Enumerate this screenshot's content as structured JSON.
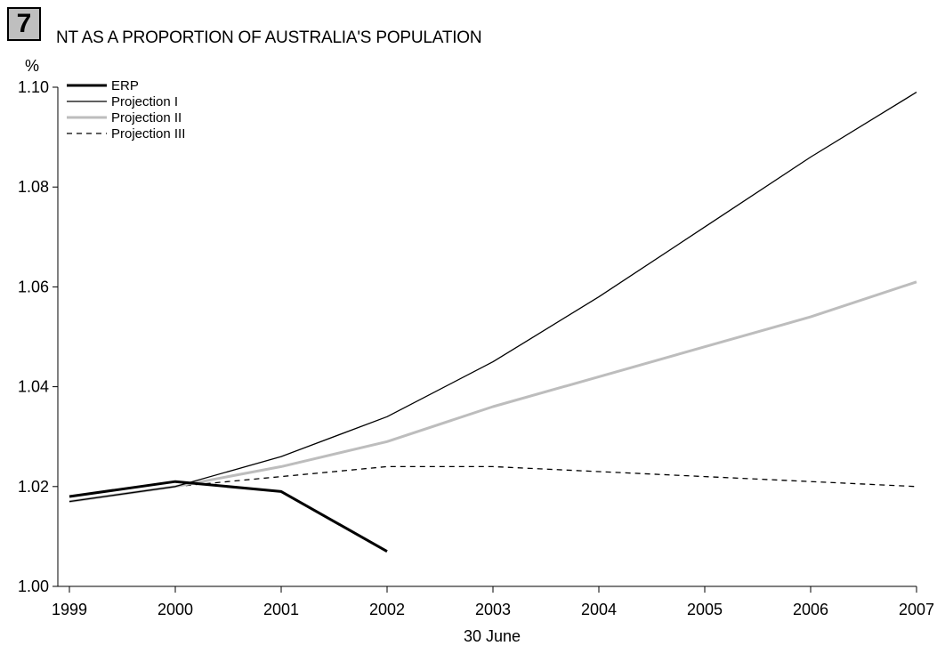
{
  "badge": "7",
  "chart_data": {
    "type": "line",
    "title": "NT AS A PROPORTION OF AUSTRALIA'S POPULATION",
    "ylabel": "%",
    "xlabel": "30 June",
    "ylim": [
      1.0,
      1.1
    ],
    "yticks": [
      "1.00",
      "1.02",
      "1.04",
      "1.06",
      "1.08",
      "1.10"
    ],
    "x": [
      1999,
      2000,
      2001,
      2002,
      2003,
      2004,
      2005,
      2006,
      2007
    ],
    "xticks": [
      "1999",
      "2000",
      "2001",
      "2002",
      "2003",
      "2004",
      "2005",
      "2006",
      "2007"
    ],
    "legend_position": "top-left",
    "series": [
      {
        "name": "ERP",
        "color": "#000000",
        "style": "solid-thick",
        "x": [
          1999,
          2000,
          2001,
          2002
        ],
        "values": [
          1.018,
          1.021,
          1.019,
          1.007
        ]
      },
      {
        "name": "Projection I",
        "color": "#000000",
        "style": "solid-thin",
        "x": [
          1999,
          2000,
          2001,
          2002,
          2003,
          2004,
          2005,
          2006,
          2007
        ],
        "values": [
          1.017,
          1.02,
          1.026,
          1.034,
          1.045,
          1.058,
          1.072,
          1.086,
          1.099
        ]
      },
      {
        "name": "Projection II",
        "color": "#bdbdbd",
        "style": "solid-thick",
        "x": [
          1999,
          2000,
          2001,
          2002,
          2003,
          2004,
          2005,
          2006,
          2007
        ],
        "values": [
          1.017,
          1.02,
          1.024,
          1.029,
          1.036,
          1.042,
          1.048,
          1.054,
          1.061
        ]
      },
      {
        "name": "Projection III",
        "color": "#000000",
        "style": "dashed",
        "x": [
          1999,
          2000,
          2001,
          2002,
          2003,
          2004,
          2005,
          2006,
          2007
        ],
        "values": [
          1.017,
          1.02,
          1.022,
          1.024,
          1.024,
          1.023,
          1.022,
          1.021,
          1.02
        ]
      }
    ]
  }
}
